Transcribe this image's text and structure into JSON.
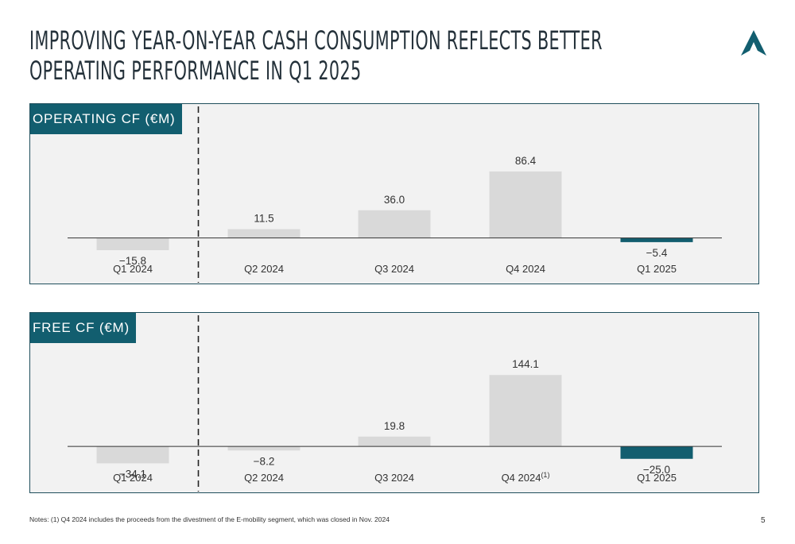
{
  "title_lines": [
    "IMPROVING YEAR-ON-YEAR CASH CONSUMPTION REFLECTS BETTER",
    "OPERATING PERFORMANCE IN Q1 2025"
  ],
  "logo": "triangle-a-logo",
  "colors": {
    "accent": "#125e6f",
    "bar": "#d9d9d9",
    "highlight_bar": "#125e6f",
    "panel_bg": "#f2f2f2"
  },
  "chart_data": [
    {
      "type": "bar",
      "title": "OPERATING CF (€M)",
      "categories": [
        "Q1 2024",
        "Q2 2024",
        "Q3 2024",
        "Q4 2024",
        "Q1 2025"
      ],
      "category_superscripts": [
        "",
        "",
        "",
        "",
        ""
      ],
      "values": [
        -15.8,
        11.5,
        36.0,
        86.4,
        -5.4
      ],
      "value_labels": [
        "−15.8",
        "11.5",
        "36.0",
        "86.4",
        "−5.4"
      ],
      "highlight": [
        false,
        false,
        false,
        false,
        true
      ],
      "divider_after_category": 0,
      "ylim": [
        -22,
        110
      ]
    },
    {
      "type": "bar",
      "title": "FREE CF (€M)",
      "categories": [
        "Q1 2024",
        "Q2 2024",
        "Q3 2024",
        "Q4 2024",
        "Q1 2025"
      ],
      "category_superscripts": [
        "",
        "",
        "",
        "(1)",
        ""
      ],
      "values": [
        -34.1,
        -8.2,
        19.8,
        144.1,
        -25.0
      ],
      "value_labels": [
        "−34.1",
        "−8.2",
        "19.8",
        "144.1",
        "−25.0"
      ],
      "highlight": [
        false,
        false,
        false,
        false,
        true
      ],
      "divider_after_category": 0,
      "ylim": [
        -35,
        170
      ]
    }
  ],
  "footnote": "Notes: (1) Q4 2024 includes the proceeds from the divestment of the E-mobility segment, which was closed in Nov. 2024",
  "page_number": "5"
}
